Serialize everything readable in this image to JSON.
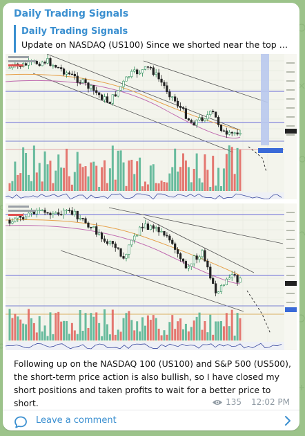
{
  "channel": {
    "name": "Daily Trading Signals"
  },
  "reply": {
    "author": "Daily Trading Signals",
    "text": "Update on NASDAQ (US100)  Since we shorted near the top as w..."
  },
  "message": {
    "text": "Following up on the NASDAQ 100 (US100) and S&P 500 (US500), the short-term price action is also bullish, so I have closed my short positions and taken profits to wait for a better price to short.",
    "views": "135",
    "time": "12:02 PM"
  },
  "footer": {
    "comment_label": "Leave a comment"
  },
  "colors": {
    "accent": "#3a8fd0",
    "background": "#9cc38a",
    "bullish_candle": "#2f8f5a",
    "bearish_candle": "#222222",
    "volume_up": "#4fb08f",
    "volume_down": "#e0605a"
  },
  "icons": {
    "views": "eye-icon",
    "comment": "comment-bubble-icon",
    "chevron": "chevron-right-icon"
  },
  "charts": [
    {
      "name": "US100 chart"
    },
    {
      "name": "US500 chart"
    }
  ]
}
